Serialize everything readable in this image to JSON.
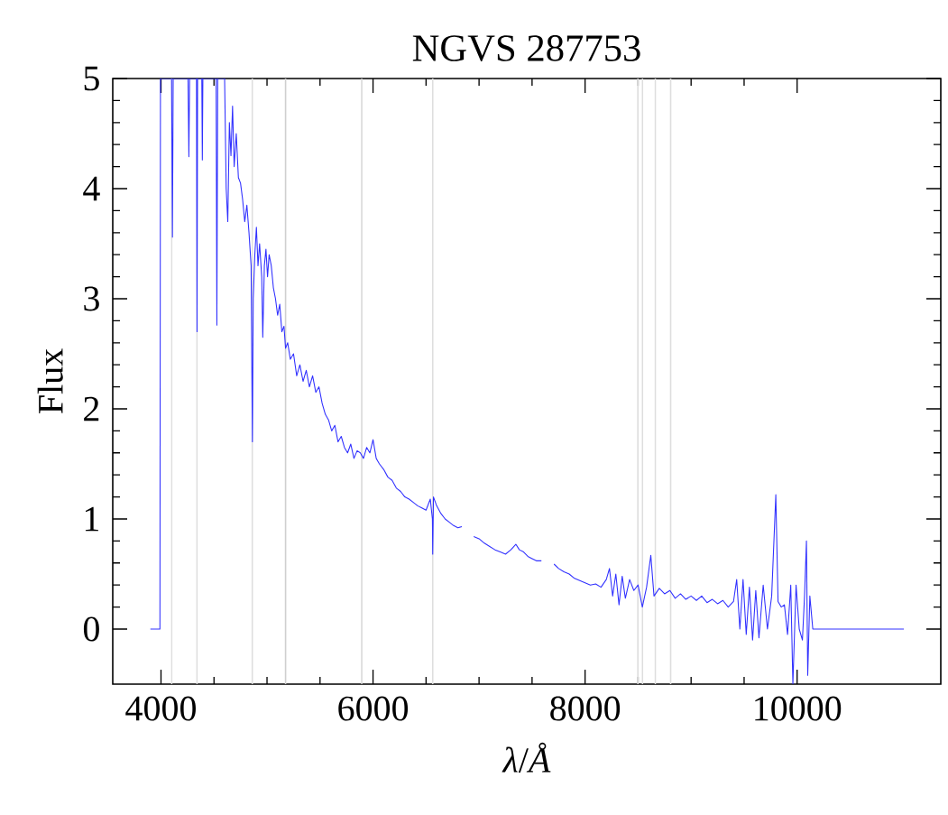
{
  "chart_data": {
    "type": "line",
    "title": "NGVS 287753",
    "xlabel": "*λ*/*Å*",
    "ylabel": "Flux",
    "xlim": [
      3545,
      11355
    ],
    "ylim": [
      -0.5,
      5
    ],
    "xticks": [
      4000,
      6000,
      8000,
      10000
    ],
    "yticks": [
      0,
      1,
      2,
      3,
      4,
      5
    ],
    "ref_lines": [
      {
        "axis": "x",
        "value": 4102,
        "color": "#dedede"
      },
      {
        "axis": "x",
        "value": 4340,
        "color": "#dedede"
      },
      {
        "axis": "x",
        "value": 4861,
        "color": "#dedede"
      },
      {
        "axis": "x",
        "value": 5175,
        "color": "#cfcfcf"
      },
      {
        "axis": "x",
        "value": 5893,
        "color": "#d5d5d5"
      },
      {
        "axis": "x",
        "value": 6563,
        "color": "#dedede"
      },
      {
        "axis": "x",
        "value": 8498,
        "color": "#dedede"
      },
      {
        "axis": "x",
        "value": 8542,
        "color": "#dedede"
      },
      {
        "axis": "x",
        "value": 8662,
        "color": "#dedede"
      },
      {
        "axis": "x",
        "value": 8807,
        "color": "#dedede"
      }
    ],
    "x": [
      3900,
      3990,
      3995,
      4100,
      4108,
      4115,
      4255,
      4263,
      4270,
      4335,
      4340,
      4345,
      4385,
      4390,
      4395,
      4520,
      4527,
      4535,
      4600,
      4615,
      4630,
      4645,
      4660,
      4675,
      4690,
      4710,
      4730,
      4750,
      4770,
      4790,
      4810,
      4830,
      4850,
      4862,
      4870,
      4885,
      4900,
      4915,
      4930,
      4950,
      4960,
      4975,
      4990,
      5005,
      5020,
      5040,
      5060,
      5080,
      5100,
      5120,
      5140,
      5160,
      5175,
      5195,
      5220,
      5250,
      5280,
      5310,
      5340,
      5370,
      5400,
      5430,
      5460,
      5490,
      5520,
      5550,
      5580,
      5610,
      5640,
      5670,
      5700,
      5730,
      5760,
      5790,
      5820,
      5850,
      5880,
      5910,
      5940,
      5970,
      6000,
      6030,
      6060,
      6100,
      6140,
      6180,
      6220,
      6260,
      6300,
      6340,
      6380,
      6420,
      6460,
      6500,
      6540,
      6560,
      6563,
      6570,
      6600,
      6640,
      6680,
      6720,
      6760,
      6800,
      6838,
      6880,
      6950,
      7000,
      7050,
      7100,
      7150,
      7200,
      7250,
      7300,
      7347,
      7380,
      7420,
      7460,
      7500,
      7540,
      7588,
      7650,
      7707,
      7750,
      7800,
      7850,
      7900,
      7950,
      8000,
      8050,
      8100,
      8150,
      8200,
      8230,
      8260,
      8290,
      8320,
      8350,
      8380,
      8420,
      8460,
      8500,
      8540,
      8580,
      8620,
      8650,
      8700,
      8750,
      8800,
      8850,
      8900,
      8950,
      9000,
      9050,
      9100,
      9150,
      9200,
      9250,
      9300,
      9350,
      9400,
      9430,
      9460,
      9490,
      9520,
      9550,
      9580,
      9610,
      9640,
      9680,
      9720,
      9760,
      9799,
      9820,
      9850,
      9880,
      9910,
      9940,
      9960,
      9990,
      10020,
      10050,
      10070,
      10088,
      10100,
      10120,
      10148,
      11007
    ],
    "series": [
      {
        "color": "#3030ff",
        "values": [
          0,
          0,
          5,
          5,
          3.56,
          5,
          5,
          4.29,
          5,
          5,
          2.7,
          5,
          5,
          4.26,
          5,
          5,
          2.76,
          5,
          5,
          4.0,
          3.7,
          4.6,
          4.3,
          4.75,
          4.2,
          4.5,
          4.1,
          4.05,
          3.9,
          3.7,
          3.85,
          3.6,
          3.3,
          1.7,
          3.0,
          3.4,
          3.65,
          3.3,
          3.5,
          3.2,
          2.65,
          3.3,
          3.45,
          3.2,
          3.4,
          3.3,
          3.1,
          3.0,
          2.85,
          2.95,
          2.7,
          2.75,
          2.55,
          2.6,
          2.45,
          2.5,
          2.3,
          2.4,
          2.25,
          2.35,
          2.2,
          2.3,
          2.15,
          2.2,
          2.05,
          1.95,
          1.9,
          1.8,
          1.85,
          1.7,
          1.75,
          1.65,
          1.6,
          1.68,
          1.55,
          1.62,
          1.6,
          1.55,
          1.65,
          1.6,
          1.72,
          1.55,
          1.5,
          1.45,
          1.38,
          1.35,
          1.28,
          1.25,
          1.2,
          1.18,
          1.15,
          1.12,
          1.1,
          1.08,
          1.18,
          1.0,
          0.68,
          1.2,
          1.12,
          1.05,
          1.0,
          0.97,
          0.94,
          0.92,
          0.93,
          null,
          0.84,
          0.82,
          0.78,
          0.75,
          0.72,
          0.7,
          0.68,
          0.72,
          0.77,
          0.72,
          0.7,
          0.66,
          0.64,
          0.62,
          0.62,
          null,
          0.59,
          0.55,
          0.52,
          0.5,
          0.46,
          0.44,
          0.42,
          0.4,
          0.41,
          0.38,
          0.45,
          0.55,
          0.3,
          0.5,
          0.22,
          0.48,
          0.28,
          0.45,
          0.35,
          0.4,
          0.2,
          0.38,
          0.67,
          0.3,
          0.37,
          0.32,
          0.35,
          0.28,
          0.32,
          0.27,
          0.3,
          0.26,
          0.3,
          0.24,
          0.27,
          0.23,
          0.26,
          0.2,
          0.25,
          0.45,
          0.0,
          0.45,
          -0.05,
          0.38,
          -0.1,
          0.35,
          -0.08,
          0.4,
          0.0,
          0.3,
          1.22,
          0.25,
          0.2,
          0.22,
          -0.05,
          0.4,
          -0.5,
          0.4,
          0.0,
          -0.1,
          0.3,
          0.8,
          -0.42,
          0.3,
          0,
          0
        ]
      }
    ]
  }
}
